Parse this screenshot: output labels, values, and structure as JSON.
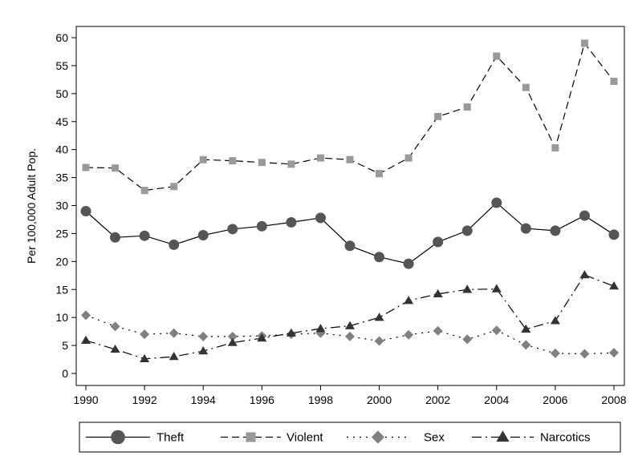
{
  "chart_data": {
    "type": "line",
    "title": "",
    "xlabel": "",
    "ylabel": "Per 100,000 Adult Pop.",
    "xlim": [
      1990,
      2008
    ],
    "ylim": [
      0,
      60
    ],
    "x_ticks": [
      "1990",
      "1992",
      "1994",
      "1996",
      "1998",
      "2000",
      "2002",
      "2004",
      "2006",
      "2008"
    ],
    "y_ticks": [
      "0",
      "5",
      "10",
      "15",
      "20",
      "25",
      "30",
      "35",
      "40",
      "45",
      "50",
      "55",
      "60"
    ],
    "x": [
      1990,
      1991,
      1992,
      1993,
      1994,
      1995,
      1996,
      1997,
      1998,
      1999,
      2000,
      2001,
      2002,
      2003,
      2004,
      2005,
      2006,
      2007,
      2008
    ],
    "grid": false,
    "legend_position": "bottom",
    "series": [
      {
        "name": "Theft",
        "marker": "circle",
        "line_style": "solid",
        "color": "#555555",
        "values": [
          29,
          24.3,
          24.6,
          23,
          24.7,
          25.8,
          26.3,
          27,
          27.8,
          22.8,
          20.8,
          19.6,
          23.5,
          25.5,
          30.5,
          25.9,
          25.5,
          28.2,
          24.8
        ]
      },
      {
        "name": "Violent",
        "marker": "square",
        "line_style": "dashed",
        "color": "#999999",
        "values": [
          36.8,
          36.7,
          32.7,
          33.4,
          38.2,
          38,
          37.7,
          37.4,
          38.5,
          38.2,
          35.7,
          38.5,
          45.9,
          47.6,
          56.7,
          51.1,
          40.3,
          59,
          52.2
        ]
      },
      {
        "name": "Sex",
        "marker": "diamond",
        "line_style": "dotted",
        "color": "#808080",
        "values": [
          10.4,
          8.4,
          7,
          7.2,
          6.6,
          6.6,
          6.7,
          7,
          7.2,
          6.6,
          5.8,
          6.9,
          7.6,
          6.1,
          7.7,
          5.1,
          3.6,
          3.5,
          3.7
        ]
      },
      {
        "name": "Narcotics",
        "marker": "triangle",
        "line_style": "dash-dot",
        "color": "#333333",
        "values": [
          5.9,
          4.3,
          2.6,
          3,
          4,
          5.5,
          6.3,
          7.2,
          8,
          8.5,
          10,
          13,
          14.2,
          15,
          15.1,
          7.9,
          9.4,
          17.6,
          15.6
        ]
      }
    ]
  }
}
